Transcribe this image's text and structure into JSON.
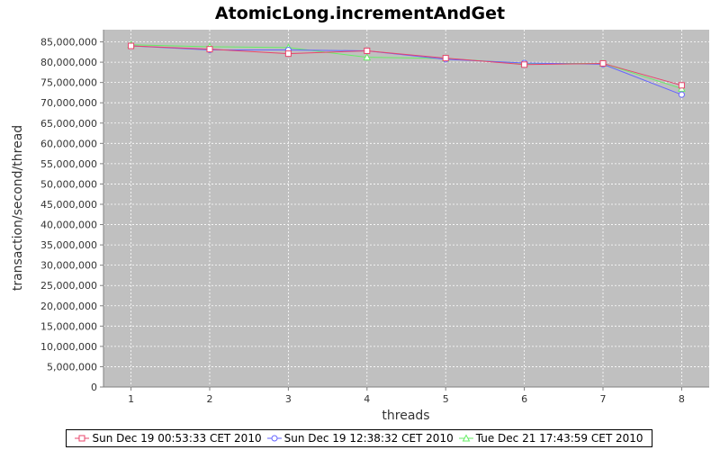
{
  "chart_data": {
    "type": "line",
    "title": "AtomicLong.incrementAndGet",
    "xlabel": "threads",
    "ylabel": "transaction/second/thread",
    "x": [
      1,
      2,
      3,
      4,
      5,
      6,
      7,
      8
    ],
    "xlim": [
      0.65,
      8.35
    ],
    "ylim": [
      0,
      88000000
    ],
    "yticks": [
      0,
      5000000,
      10000000,
      15000000,
      20000000,
      25000000,
      30000000,
      35000000,
      40000000,
      45000000,
      50000000,
      55000000,
      60000000,
      65000000,
      70000000,
      75000000,
      80000000,
      85000000
    ],
    "ytick_labels": [
      "0",
      "5,000,000",
      "10,000,000",
      "15,000,000",
      "20,000,000",
      "25,000,000",
      "30,000,000",
      "35,000,000",
      "40,000,000",
      "45,000,000",
      "50,000,000",
      "55,000,000",
      "60,000,000",
      "65,000,000",
      "70,000,000",
      "75,000,000",
      "80,000,000",
      "85,000,000"
    ],
    "xtick_labels": [
      "1",
      "2",
      "3",
      "4",
      "5",
      "6",
      "7",
      "8"
    ],
    "grid": true,
    "legend_position": "bottom",
    "series": [
      {
        "name": "Sun Dec 19 00:53:33 CET 2010",
        "color": "#e8446b",
        "marker": "square",
        "values": [
          84000000,
          83200000,
          82100000,
          82800000,
          81000000,
          79400000,
          79700000,
          74300000
        ]
      },
      {
        "name": "Sun Dec 19 12:38:32 CET 2010",
        "color": "#6464ff",
        "marker": "circle",
        "values": [
          84000000,
          83000000,
          83000000,
          82800000,
          80700000,
          79800000,
          79500000,
          72000000
        ]
      },
      {
        "name": "Tue Dec 21 17:43:59 CET 2010",
        "color": "#66ee66",
        "marker": "triangle",
        "values": [
          84300000,
          83800000,
          83600000,
          81200000,
          80900000,
          79700000,
          79700000,
          73500000
        ]
      }
    ]
  }
}
